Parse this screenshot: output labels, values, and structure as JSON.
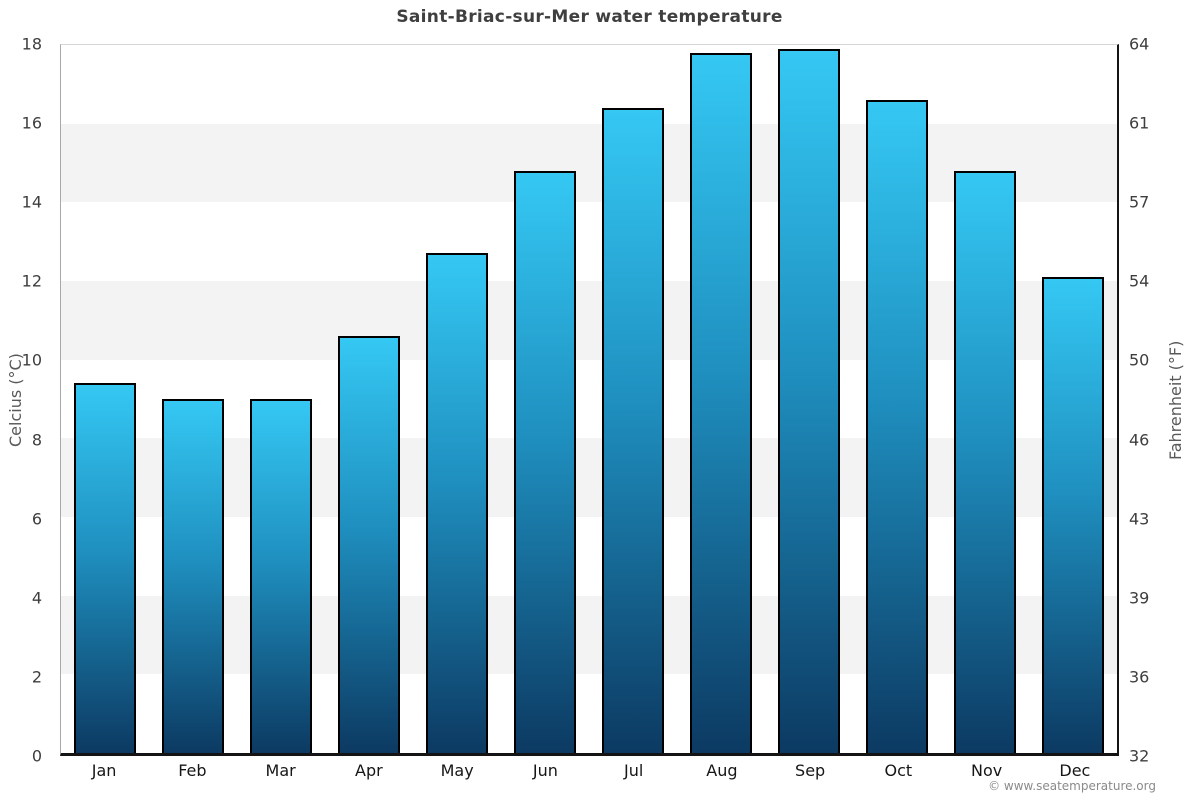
{
  "page": {
    "copyright": "© www.seatemperature.org"
  },
  "chart_data": {
    "type": "bar",
    "title": "Saint-Briac-sur-Mer water temperature",
    "categories": [
      "Jan",
      "Feb",
      "Mar",
      "Apr",
      "May",
      "Jun",
      "Jul",
      "Aug",
      "Sep",
      "Oct",
      "Nov",
      "Dec"
    ],
    "values": [
      9.4,
      9.0,
      9.0,
      10.6,
      12.7,
      14.8,
      16.4,
      17.8,
      17.9,
      16.6,
      14.8,
      12.1
    ],
    "unit": "°C",
    "xlabel": "",
    "ylabel_left": "Celcius (°C)",
    "ylabel_right": "Fahrenheit (°F)",
    "ylim": [
      0,
      18
    ],
    "yticks_celsius": [
      18,
      16,
      14,
      12,
      10,
      8,
      6,
      4,
      2,
      0
    ],
    "yticks_fahrenheit": [
      64,
      61,
      57,
      54,
      50,
      46,
      43,
      39,
      36,
      32
    ],
    "legend": "none",
    "grid": "alternating horizontal bands every 2°C",
    "band_color": "#f3f3f3",
    "bar_gradient_top": "#35c8f3",
    "bar_gradient_mid": "#1f90c0",
    "bar_gradient_bottom": "#0c3a62",
    "bar_border_color": "#000000",
    "copyright": "© www.seatemperature.org"
  }
}
